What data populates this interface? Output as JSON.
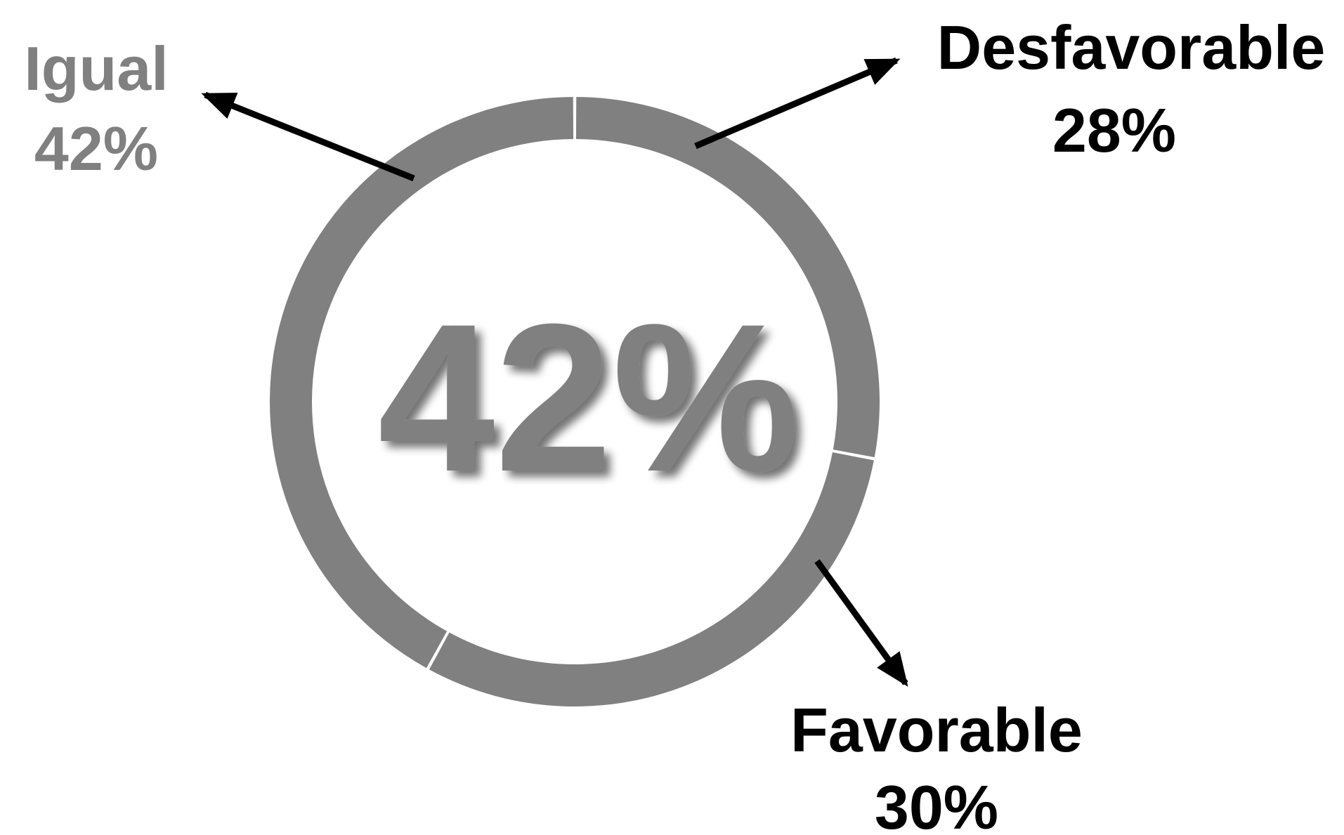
{
  "chart_data": {
    "type": "pie",
    "style": "donut",
    "center_label": "42%",
    "slices": [
      {
        "label": "Desfavorable",
        "value": 28,
        "value_label": "28%",
        "color": "#808080",
        "text_color": "#000000"
      },
      {
        "label": "Favorable",
        "value": 30,
        "value_label": "30%",
        "color": "#808080",
        "text_color": "#000000"
      },
      {
        "label": "Igual",
        "value": 42,
        "value_label": "42%",
        "color": "#808080",
        "text_color": "#808080"
      }
    ],
    "center_label_color": "#808080",
    "arrow_color": "#000000",
    "background": "#ffffff"
  }
}
